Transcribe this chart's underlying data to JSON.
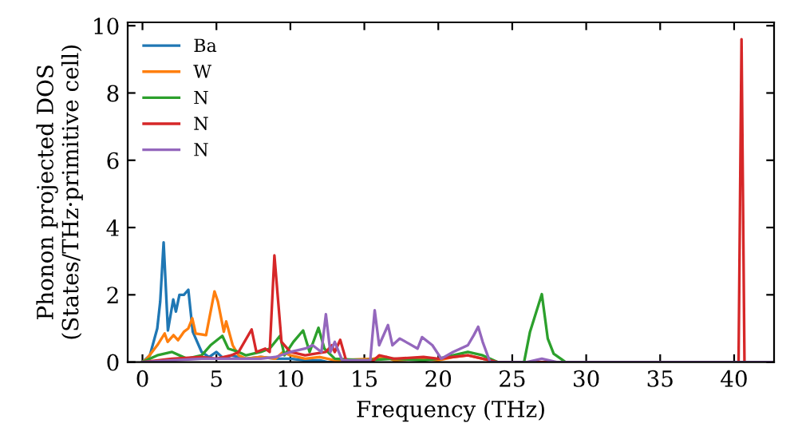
{
  "chart_data": {
    "type": "line",
    "xlabel": "Frequency (THz)",
    "ylabel": "Phonon projected DOS\n(States/THz·primitive cell)",
    "xlim": [
      -1,
      42.7
    ],
    "ylim": [
      0,
      10.1
    ],
    "xticks": [
      0,
      5,
      10,
      15,
      20,
      25,
      30,
      35,
      40
    ],
    "yticks": [
      0,
      2,
      4,
      6,
      8,
      10
    ],
    "legend": "top left",
    "grid": false,
    "series": [
      {
        "name": "Ba",
        "color": "#1f77b4",
        "x": [
          0,
          0.5,
          1.0,
          1.2,
          1.43,
          1.72,
          2.08,
          2.26,
          2.5,
          2.8,
          3.1,
          3.4,
          4.0,
          4.5,
          5.0,
          5.5,
          6.0,
          7,
          8,
          9,
          10,
          11,
          12,
          12.5,
          13
        ],
        "values": [
          0,
          0.2,
          1.0,
          1.8,
          3.56,
          0.94,
          1.86,
          1.5,
          2.0,
          2.0,
          2.15,
          0.9,
          0.3,
          0.15,
          0.3,
          0.1,
          0.2,
          0.1,
          0.15,
          0.1,
          0.1,
          0.05,
          0.05,
          0,
          0
        ]
      },
      {
        "name": "W",
        "color": "#ff7f0e",
        "x": [
          0,
          0.3,
          1.0,
          1.5,
          1.7,
          2.1,
          2.4,
          2.8,
          3.1,
          3.37,
          3.6,
          4.3,
          4.87,
          5.1,
          5.5,
          5.66,
          6.1,
          6.5,
          7,
          8,
          9,
          9.5,
          10,
          11,
          12,
          13,
          15.6,
          16.5,
          17,
          19,
          20,
          21,
          22,
          23,
          24,
          42.5
        ],
        "values": [
          0,
          0.1,
          0.5,
          0.85,
          0.6,
          0.8,
          0.65,
          0.9,
          1.0,
          1.3,
          0.85,
          0.8,
          2.1,
          1.8,
          0.9,
          1.21,
          0.5,
          0.2,
          0.1,
          0.15,
          0.1,
          0.3,
          0.2,
          0.1,
          0.15,
          0.05,
          0.1,
          0.15,
          0.05,
          0.1,
          0.05,
          0.15,
          0.2,
          0.1,
          0,
          0
        ]
      },
      {
        "name": "N",
        "color": "#2ca02c",
        "x": [
          0,
          1,
          2,
          3,
          4,
          4.6,
          5.4,
          5.8,
          6.5,
          7,
          8,
          8.6,
          9.3,
          9.6,
          10.2,
          10.86,
          11.3,
          11.9,
          12.3,
          13,
          15,
          17,
          19,
          20,
          21,
          22,
          23,
          24,
          25.8,
          26.2,
          27.0,
          27.4,
          27.8,
          28.6,
          42.5
        ],
        "values": [
          0,
          0.2,
          0.3,
          0.1,
          0.2,
          0.5,
          0.78,
          0.4,
          0.3,
          0.2,
          0.3,
          0.4,
          0.78,
          0.2,
          0.6,
          0.94,
          0.3,
          1.02,
          0.4,
          0.1,
          0.05,
          0.1,
          0.05,
          0.1,
          0.2,
          0.3,
          0.2,
          0,
          0,
          0.9,
          2.02,
          0.7,
          0.25,
          0,
          0
        ]
      },
      {
        "name": "N",
        "color": "#d62728",
        "x": [
          0,
          2,
          4,
          5,
          6,
          6.5,
          7.38,
          7.7,
          8.3,
          8.6,
          8.92,
          9.4,
          10,
          11,
          12.4,
          12.8,
          13.0,
          13.37,
          13.8,
          15.5,
          16,
          17,
          19,
          20,
          21,
          22,
          23,
          24,
          40.3,
          40.5,
          40.7,
          42.5
        ],
        "values": [
          0,
          0.1,
          0.15,
          0.1,
          0.2,
          0.3,
          0.97,
          0.3,
          0.4,
          0.3,
          3.17,
          0.6,
          0.3,
          0.2,
          0.3,
          0.5,
          0.3,
          0.66,
          0,
          0,
          0.2,
          0.1,
          0.15,
          0.1,
          0.15,
          0.2,
          0.1,
          0,
          0,
          9.6,
          0,
          0
        ]
      },
      {
        "name": "N",
        "color": "#9467bd",
        "x": [
          0,
          2,
          4,
          6,
          8,
          9,
          10,
          11,
          11.5,
          12.1,
          12.4,
          12.7,
          13.0,
          13.5,
          15.4,
          15.7,
          16.0,
          16.6,
          16.9,
          17.4,
          18.0,
          18.6,
          18.9,
          19.6,
          20.2,
          21,
          22,
          22.4,
          22.7,
          23.0,
          23.5,
          26,
          27,
          28,
          42.5
        ],
        "values": [
          0,
          0.05,
          0.1,
          0.1,
          0.1,
          0.15,
          0.3,
          0.4,
          0.5,
          0.3,
          1.42,
          0.3,
          0.6,
          0.05,
          0.05,
          1.54,
          0.5,
          1.1,
          0.5,
          0.7,
          0.55,
          0.4,
          0.74,
          0.5,
          0.1,
          0.3,
          0.5,
          0.8,
          1.05,
          0.6,
          0,
          0,
          0.1,
          0,
          0
        ]
      }
    ]
  }
}
